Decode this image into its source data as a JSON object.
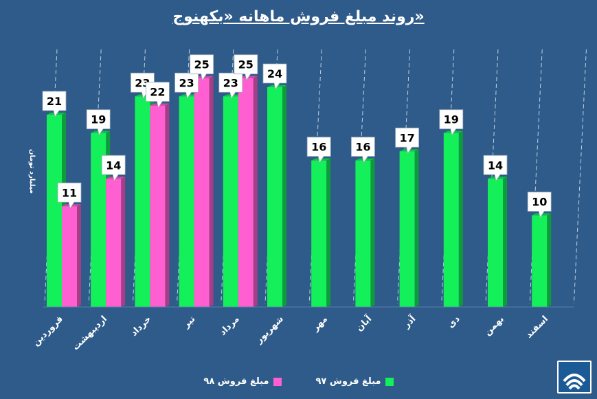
{
  "chart_data": {
    "type": "bar",
    "title": "روند مبلغ فروش ماهانه «بکهنوج»",
    "ylabel": "میلیارد تومان",
    "categories": [
      "فروردین",
      "اردیبهشت",
      "خرداد",
      "تیر",
      "مرداد",
      "شهریور",
      "مهر",
      "آبان",
      "آذر",
      "دی",
      "بهمن",
      "اسفند"
    ],
    "series": [
      {
        "name": "مبلغ فروش ۹۷",
        "color": "#14f05a",
        "values": [
          21,
          19,
          23,
          23,
          23,
          24,
          16,
          16,
          17,
          19,
          14,
          10
        ]
      },
      {
        "name": "مبلغ فروش ۹۸",
        "color": "#ff5fd0",
        "values": [
          11,
          14,
          22,
          25,
          25,
          null,
          null,
          null,
          null,
          null,
          null,
          null
        ]
      }
    ],
    "ylim": [
      0,
      30
    ],
    "grid": false,
    "legend": "bottom"
  },
  "colors": {
    "background": "#2f5b8a",
    "label_box": "#ffffff"
  },
  "icons": {
    "logo": "company-logo-icon"
  }
}
